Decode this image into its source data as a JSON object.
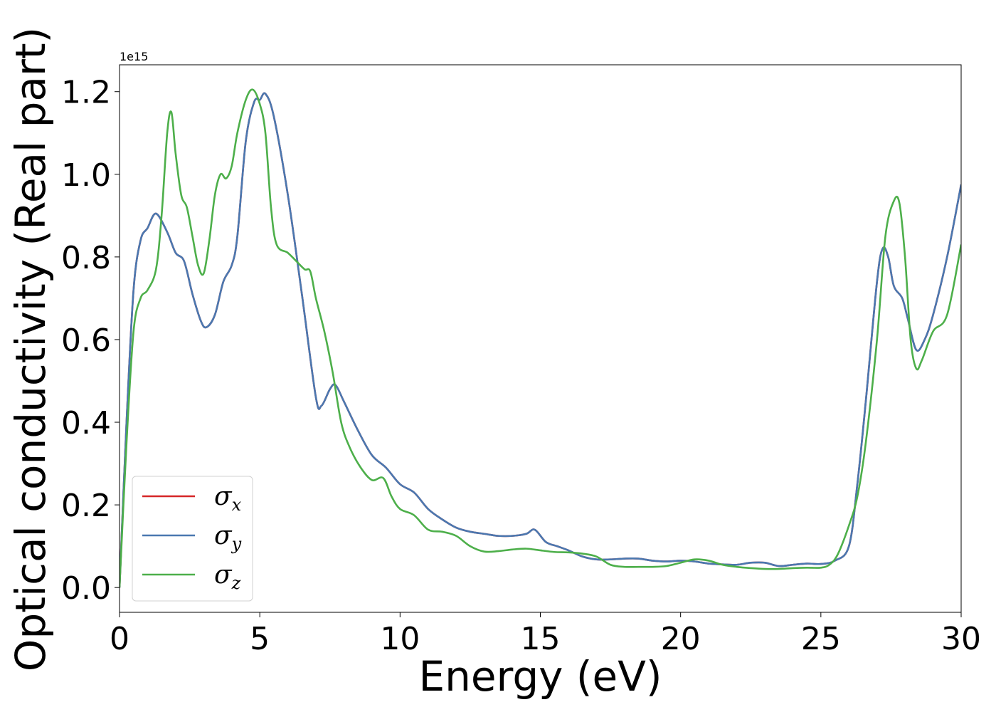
{
  "chart_data": {
    "type": "line",
    "xlabel": "Energy (eV)",
    "ylabel": "Optical conductivity (Real part)",
    "offset_text": "1e15",
    "xlim": [
      0,
      30
    ],
    "ylim": [
      -0.06,
      1.265
    ],
    "x_ticks": [
      0,
      5,
      10,
      15,
      20,
      25,
      30
    ],
    "x_tick_labels": [
      "0",
      "5",
      "10",
      "15",
      "20",
      "25",
      "30"
    ],
    "y_ticks": [
      0.0,
      0.2,
      0.4,
      0.6,
      0.8,
      1.0,
      1.2
    ],
    "y_tick_labels": [
      "0.0",
      "0.2",
      "0.4",
      "0.6",
      "0.8",
      "1.0",
      "1.2"
    ],
    "grid": false,
    "legend_position": "lower-left",
    "series": [
      {
        "name": "σx",
        "symbol": "σ",
        "subscript": "x",
        "color": "#d62728",
        "x": [
          0,
          0.25,
          0.5,
          0.75,
          1.0,
          1.3,
          1.7,
          2.0,
          2.3,
          2.6,
          2.9,
          3.1,
          3.4,
          3.7,
          4.0,
          4.2,
          4.5,
          4.8,
          5.0,
          5.2,
          5.5,
          6.0,
          6.5,
          7.0,
          7.2,
          7.5,
          7.7,
          8.0,
          8.5,
          9.0,
          9.5,
          10.0,
          10.5,
          11.0,
          11.5,
          12.0,
          12.5,
          13.0,
          13.5,
          14.0,
          14.5,
          14.8,
          15.2,
          15.6,
          16.0,
          16.5,
          17.0,
          17.5,
          18.0,
          18.5,
          19.0,
          19.5,
          20.0,
          20.5,
          21.0,
          21.5,
          22.0,
          22.5,
          23.0,
          23.5,
          24.0,
          24.5,
          25.0,
          25.5,
          26.0,
          26.3,
          26.6,
          27.0,
          27.2,
          27.4,
          27.6,
          27.9,
          28.1,
          28.4,
          28.7,
          29.0,
          29.5,
          30.0
        ],
        "values": [
          0.0,
          0.4,
          0.72,
          0.84,
          0.87,
          0.905,
          0.86,
          0.81,
          0.79,
          0.71,
          0.645,
          0.63,
          0.66,
          0.74,
          0.78,
          0.85,
          1.08,
          1.175,
          1.18,
          1.195,
          1.14,
          0.95,
          0.71,
          0.46,
          0.44,
          0.48,
          0.49,
          0.45,
          0.38,
          0.32,
          0.29,
          0.25,
          0.23,
          0.19,
          0.165,
          0.145,
          0.135,
          0.13,
          0.125,
          0.125,
          0.13,
          0.14,
          0.11,
          0.1,
          0.09,
          0.075,
          0.068,
          0.068,
          0.07,
          0.07,
          0.065,
          0.063,
          0.065,
          0.063,
          0.058,
          0.056,
          0.055,
          0.06,
          0.06,
          0.052,
          0.055,
          0.058,
          0.057,
          0.065,
          0.1,
          0.25,
          0.45,
          0.74,
          0.82,
          0.8,
          0.73,
          0.7,
          0.65,
          0.575,
          0.6,
          0.66,
          0.8,
          0.975
        ]
      },
      {
        "name": "σy",
        "symbol": "σ",
        "subscript": "y",
        "color": "#4a78b0",
        "x": [
          0,
          0.25,
          0.5,
          0.75,
          1.0,
          1.3,
          1.7,
          2.0,
          2.3,
          2.6,
          2.9,
          3.1,
          3.4,
          3.7,
          4.0,
          4.2,
          4.5,
          4.8,
          5.0,
          5.2,
          5.5,
          6.0,
          6.5,
          7.0,
          7.2,
          7.5,
          7.7,
          8.0,
          8.5,
          9.0,
          9.5,
          10.0,
          10.5,
          11.0,
          11.5,
          12.0,
          12.5,
          13.0,
          13.5,
          14.0,
          14.5,
          14.8,
          15.2,
          15.6,
          16.0,
          16.5,
          17.0,
          17.5,
          18.0,
          18.5,
          19.0,
          19.5,
          20.0,
          20.5,
          21.0,
          21.5,
          22.0,
          22.5,
          23.0,
          23.5,
          24.0,
          24.5,
          25.0,
          25.5,
          26.0,
          26.3,
          26.6,
          27.0,
          27.2,
          27.4,
          27.6,
          27.9,
          28.1,
          28.4,
          28.7,
          29.0,
          29.5,
          30.0
        ],
        "values": [
          0.0,
          0.4,
          0.72,
          0.84,
          0.87,
          0.905,
          0.86,
          0.81,
          0.79,
          0.71,
          0.645,
          0.63,
          0.66,
          0.74,
          0.78,
          0.85,
          1.08,
          1.175,
          1.18,
          1.195,
          1.14,
          0.95,
          0.71,
          0.46,
          0.44,
          0.48,
          0.49,
          0.45,
          0.38,
          0.32,
          0.29,
          0.25,
          0.23,
          0.19,
          0.165,
          0.145,
          0.135,
          0.13,
          0.125,
          0.125,
          0.13,
          0.14,
          0.11,
          0.1,
          0.09,
          0.075,
          0.068,
          0.068,
          0.07,
          0.07,
          0.065,
          0.063,
          0.065,
          0.063,
          0.058,
          0.056,
          0.055,
          0.06,
          0.06,
          0.052,
          0.055,
          0.058,
          0.057,
          0.065,
          0.1,
          0.25,
          0.45,
          0.74,
          0.82,
          0.8,
          0.73,
          0.7,
          0.65,
          0.575,
          0.6,
          0.66,
          0.8,
          0.975
        ]
      },
      {
        "name": "σz",
        "symbol": "σ",
        "subscript": "z",
        "color": "#4daf4a",
        "x": [
          0,
          0.25,
          0.5,
          0.75,
          1.0,
          1.3,
          1.5,
          1.7,
          1.85,
          2.0,
          2.2,
          2.4,
          2.6,
          2.8,
          3.0,
          3.2,
          3.4,
          3.6,
          3.8,
          4.0,
          4.2,
          4.5,
          4.75,
          5.0,
          5.2,
          5.4,
          5.6,
          6.0,
          6.3,
          6.6,
          6.8,
          7.0,
          7.3,
          7.6,
          7.9,
          8.2,
          8.6,
          9.0,
          9.4,
          9.7,
          10.0,
          10.5,
          11.0,
          11.5,
          12.0,
          12.5,
          13.0,
          13.5,
          14.0,
          14.5,
          15.0,
          15.5,
          16.0,
          16.5,
          17.0,
          17.5,
          18.0,
          18.5,
          19.0,
          19.5,
          20.0,
          20.5,
          21.0,
          21.5,
          22.0,
          22.5,
          23.0,
          23.5,
          24.0,
          24.5,
          25.0,
          25.3,
          25.6,
          26.0,
          26.3,
          26.6,
          27.0,
          27.3,
          27.6,
          27.8,
          28.0,
          28.2,
          28.4,
          28.6,
          29.0,
          29.5,
          30.0
        ],
        "values": [
          0.0,
          0.35,
          0.62,
          0.7,
          0.72,
          0.77,
          0.9,
          1.1,
          1.15,
          1.05,
          0.95,
          0.92,
          0.85,
          0.78,
          0.76,
          0.84,
          0.95,
          1.0,
          0.99,
          1.02,
          1.1,
          1.18,
          1.205,
          1.17,
          1.1,
          0.92,
          0.83,
          0.81,
          0.79,
          0.77,
          0.765,
          0.7,
          0.62,
          0.52,
          0.4,
          0.34,
          0.29,
          0.26,
          0.265,
          0.22,
          0.19,
          0.175,
          0.14,
          0.135,
          0.125,
          0.1,
          0.087,
          0.088,
          0.092,
          0.094,
          0.09,
          0.086,
          0.085,
          0.082,
          0.075,
          0.055,
          0.05,
          0.05,
          0.05,
          0.052,
          0.06,
          0.068,
          0.065,
          0.055,
          0.05,
          0.047,
          0.045,
          0.045,
          0.047,
          0.048,
          0.048,
          0.055,
          0.08,
          0.15,
          0.22,
          0.35,
          0.6,
          0.85,
          0.935,
          0.93,
          0.8,
          0.6,
          0.53,
          0.55,
          0.62,
          0.66,
          0.83
        ]
      }
    ]
  }
}
